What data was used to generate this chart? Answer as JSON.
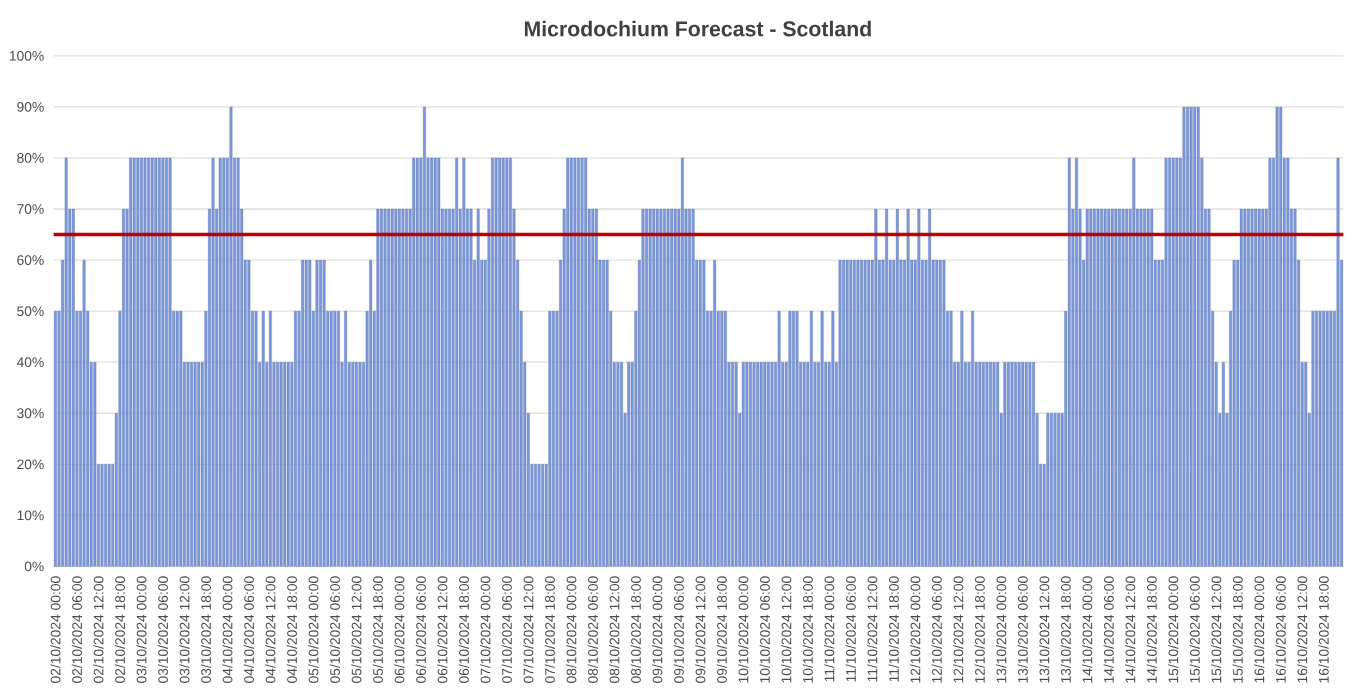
{
  "chart_data": {
    "type": "bar",
    "title": "Microdochium Forecast - Scotland",
    "categories": [
      "02/10/2024 00:00",
      null,
      null,
      null,
      null,
      null,
      "02/10/2024 06:00",
      null,
      null,
      null,
      null,
      null,
      "02/10/2024 12:00",
      null,
      null,
      null,
      null,
      null,
      "02/10/2024 18:00",
      null,
      null,
      null,
      null,
      null,
      "03/10/2024 00:00",
      null,
      null,
      null,
      null,
      null,
      "03/10/2024 06:00",
      null,
      null,
      null,
      null,
      null,
      "03/10/2024 12:00",
      null,
      null,
      null,
      null,
      null,
      "03/10/2024 18:00",
      null,
      null,
      null,
      null,
      null,
      "04/10/2024 00:00",
      null,
      null,
      null,
      null,
      null,
      "04/10/2024 06:00",
      null,
      null,
      null,
      null,
      null,
      "04/10/2024 12:00",
      null,
      null,
      null,
      null,
      null,
      "04/10/2024 18:00",
      null,
      null,
      null,
      null,
      null,
      "05/10/2024 00:00",
      null,
      null,
      null,
      null,
      null,
      "05/10/2024 06:00",
      null,
      null,
      null,
      null,
      null,
      "05/10/2024 12:00",
      null,
      null,
      null,
      null,
      null,
      "05/10/2024 18:00",
      null,
      null,
      null,
      null,
      null,
      "06/10/2024 00:00",
      null,
      null,
      null,
      null,
      null,
      "06/10/2024 06:00",
      null,
      null,
      null,
      null,
      null,
      "06/10/2024 12:00",
      null,
      null,
      null,
      null,
      null,
      "06/10/2024 18:00",
      null,
      null,
      null,
      null,
      null,
      "07/10/2024 00:00",
      null,
      null,
      null,
      null,
      null,
      "07/10/2024 06:00",
      null,
      null,
      null,
      null,
      null,
      "07/10/2024 12:00",
      null,
      null,
      null,
      null,
      null,
      "07/10/2024 18:00",
      null,
      null,
      null,
      null,
      null,
      "08/10/2024 00:00",
      null,
      null,
      null,
      null,
      null,
      "08/10/2024 06:00",
      null,
      null,
      null,
      null,
      null,
      "08/10/2024 12:00",
      null,
      null,
      null,
      null,
      null,
      "08/10/2024 18:00",
      null,
      null,
      null,
      null,
      null,
      "09/10/2024 00:00",
      null,
      null,
      null,
      null,
      null,
      "09/10/2024 06:00",
      null,
      null,
      null,
      null,
      null,
      "09/10/2024 12:00",
      null,
      null,
      null,
      null,
      null,
      "09/10/2024 18:00",
      null,
      null,
      null,
      null,
      null,
      "10/10/2024 00:00",
      null,
      null,
      null,
      null,
      null,
      "10/10/2024 06:00",
      null,
      null,
      null,
      null,
      null,
      "10/10/2024 12:00",
      null,
      null,
      null,
      null,
      null,
      "10/10/2024 18:00",
      null,
      null,
      null,
      null,
      null,
      "11/10/2024 00:00",
      null,
      null,
      null,
      null,
      null,
      "11/10/2024 06:00",
      null,
      null,
      null,
      null,
      null,
      "11/10/2024 12:00",
      null,
      null,
      null,
      null,
      null,
      "11/10/2024 18:00",
      null,
      null,
      null,
      null,
      null,
      "12/10/2024 00:00",
      null,
      null,
      null,
      null,
      null,
      "12/10/2024 06:00",
      null,
      null,
      null,
      null,
      null,
      "12/10/2024 12:00",
      null,
      null,
      null,
      null,
      null,
      "12/10/2024 18:00",
      null,
      null,
      null,
      null,
      null,
      "13/10/2024 00:00",
      null,
      null,
      null,
      null,
      null,
      "13/10/2024 06:00",
      null,
      null,
      null,
      null,
      null,
      "13/10/2024 12:00",
      null,
      null,
      null,
      null,
      null,
      "13/10/2024 18:00",
      null,
      null,
      null,
      null,
      null,
      "14/10/2024 00:00",
      null,
      null,
      null,
      null,
      null,
      "14/10/2024 06:00",
      null,
      null,
      null,
      null,
      null,
      "14/10/2024 12:00",
      null,
      null,
      null,
      null,
      null,
      "14/10/2024 18:00",
      null,
      null,
      null,
      null,
      null,
      "15/10/2024 00:00",
      null,
      null,
      null,
      null,
      null,
      "15/10/2024 06:00",
      null,
      null,
      null,
      null,
      null,
      "15/10/2024 12:00",
      null,
      null,
      null,
      null,
      null,
      "15/10/2024 18:00",
      null,
      null,
      null,
      null,
      null,
      "16/10/2024 00:00",
      null,
      null,
      null,
      null,
      null,
      "16/10/2024 06:00",
      null,
      null,
      null,
      null,
      null,
      "16/10/2024 12:00",
      null,
      null,
      null,
      null,
      null,
      "16/10/2024 18:00",
      null,
      null,
      null,
      null,
      null
    ],
    "values": [
      50,
      50,
      60,
      80,
      70,
      70,
      50,
      50,
      60,
      50,
      40,
      40,
      20,
      20,
      20,
      20,
      20,
      30,
      50,
      70,
      70,
      80,
      80,
      80,
      80,
      80,
      80,
      80,
      80,
      80,
      80,
      80,
      80,
      50,
      50,
      50,
      40,
      40,
      40,
      40,
      40,
      40,
      50,
      70,
      80,
      70,
      80,
      80,
      80,
      90,
      80,
      80,
      70,
      60,
      60,
      50,
      50,
      40,
      50,
      40,
      50,
      40,
      40,
      40,
      40,
      40,
      40,
      50,
      50,
      60,
      60,
      60,
      50,
      60,
      60,
      60,
      50,
      50,
      50,
      50,
      40,
      50,
      40,
      40,
      40,
      40,
      40,
      50,
      60,
      50,
      70,
      70,
      70,
      70,
      70,
      70,
      70,
      70,
      70,
      70,
      80,
      80,
      80,
      90,
      80,
      80,
      80,
      80,
      70,
      70,
      70,
      70,
      80,
      70,
      80,
      70,
      70,
      60,
      70,
      60,
      60,
      70,
      80,
      80,
      80,
      80,
      80,
      80,
      70,
      60,
      50,
      40,
      30,
      20,
      20,
      20,
      20,
      20,
      50,
      50,
      50,
      60,
      70,
      80,
      80,
      80,
      80,
      80,
      80,
      70,
      70,
      70,
      60,
      60,
      60,
      50,
      40,
      40,
      40,
      30,
      40,
      40,
      50,
      60,
      70,
      70,
      70,
      70,
      70,
      70,
      70,
      70,
      70,
      70,
      70,
      80,
      70,
      70,
      70,
      60,
      60,
      60,
      50,
      50,
      60,
      50,
      50,
      50,
      40,
      40,
      40,
      30,
      40,
      40,
      40,
      40,
      40,
      40,
      40,
      40,
      40,
      40,
      50,
      40,
      40,
      50,
      50,
      50,
      40,
      40,
      40,
      50,
      40,
      40,
      50,
      40,
      40,
      50,
      40,
      60,
      60,
      60,
      60,
      60,
      60,
      60,
      60,
      60,
      60,
      70,
      60,
      60,
      70,
      60,
      60,
      70,
      60,
      60,
      70,
      60,
      60,
      70,
      60,
      60,
      70,
      60,
      60,
      60,
      60,
      50,
      50,
      40,
      40,
      50,
      40,
      40,
      50,
      40,
      40,
      40,
      40,
      40,
      40,
      40,
      30,
      40,
      40,
      40,
      40,
      40,
      40,
      40,
      40,
      40,
      30,
      20,
      20,
      30,
      30,
      30,
      30,
      30,
      50,
      80,
      70,
      80,
      70,
      60,
      70,
      70,
      70,
      70,
      70,
      70,
      70,
      70,
      70,
      70,
      70,
      70,
      70,
      80,
      70,
      70,
      70,
      70,
      70,
      60,
      60,
      60,
      80,
      80,
      80,
      80,
      80,
      90,
      90,
      90,
      90,
      90,
      80,
      70,
      70,
      50,
      40,
      30,
      40,
      30,
      50,
      60,
      60,
      70,
      70,
      70,
      70,
      70,
      70,
      70,
      70,
      80,
      80,
      90,
      90,
      80,
      80,
      70,
      70,
      60,
      40,
      40,
      30,
      50,
      50,
      50,
      50,
      50,
      50,
      50,
      80,
      60
    ],
    "color": "#7b98dc",
    "ylim": [
      0,
      100
    ],
    "yticks": [
      {
        "value": 0,
        "label": "0%"
      },
      {
        "value": 10,
        "label": "10%"
      },
      {
        "value": 20,
        "label": "20%"
      },
      {
        "value": 30,
        "label": "30%"
      },
      {
        "value": 40,
        "label": "40%"
      },
      {
        "value": 50,
        "label": "50%"
      },
      {
        "value": 60,
        "label": "60%"
      },
      {
        "value": 70,
        "label": "70%"
      },
      {
        "value": 80,
        "label": "80%"
      },
      {
        "value": 90,
        "label": "90%"
      },
      {
        "value": 100,
        "label": "100%"
      }
    ],
    "grid": "y",
    "ref_lines": [
      {
        "axis": "y",
        "value": 65,
        "color": "#c00000"
      }
    ]
  }
}
